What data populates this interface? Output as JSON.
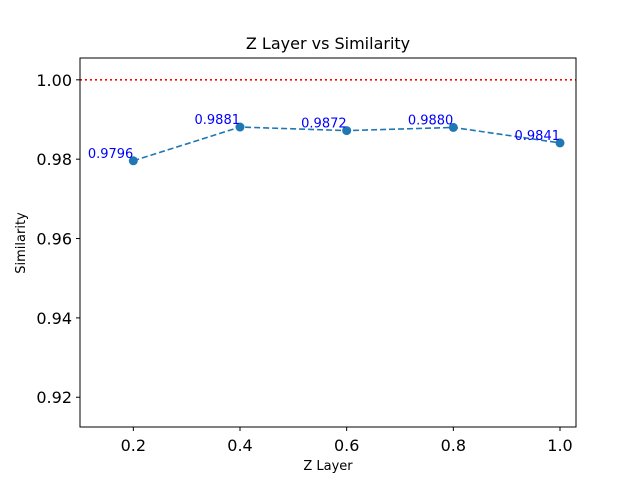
{
  "chart_data": {
    "type": "line",
    "title": "Z Layer vs Similarity",
    "xlabel": "Z Layer",
    "ylabel": "Similarity",
    "xlim": [
      0.1,
      1.03
    ],
    "ylim": [
      0.9125,
      1.0055
    ],
    "xticks": [
      0.2,
      0.4,
      0.6,
      0.8,
      1.0
    ],
    "xtick_labels": [
      "0.2",
      "0.4",
      "0.6",
      "0.8",
      "1.0"
    ],
    "yticks": [
      0.92,
      0.94,
      0.96,
      0.98,
      1.0
    ],
    "ytick_labels": [
      "0.92",
      "0.94",
      "0.96",
      "0.98",
      "1.00"
    ],
    "grid": false,
    "series": [
      {
        "x": [
          0.2,
          0.4,
          0.6,
          0.8,
          1.0
        ],
        "y": [
          0.9796,
          0.9881,
          0.9872,
          0.988,
          0.9841
        ],
        "labels": [
          "0.9796",
          "0.9881",
          "0.9872",
          "0.9880",
          "0.9841"
        ],
        "color": "#1f77b4",
        "line_style": "dashed",
        "marker": "circle",
        "label_color": "#0000ff"
      }
    ],
    "reference_line": {
      "y": 1.0,
      "color": "#ff0000",
      "line_style": "dotted"
    }
  }
}
